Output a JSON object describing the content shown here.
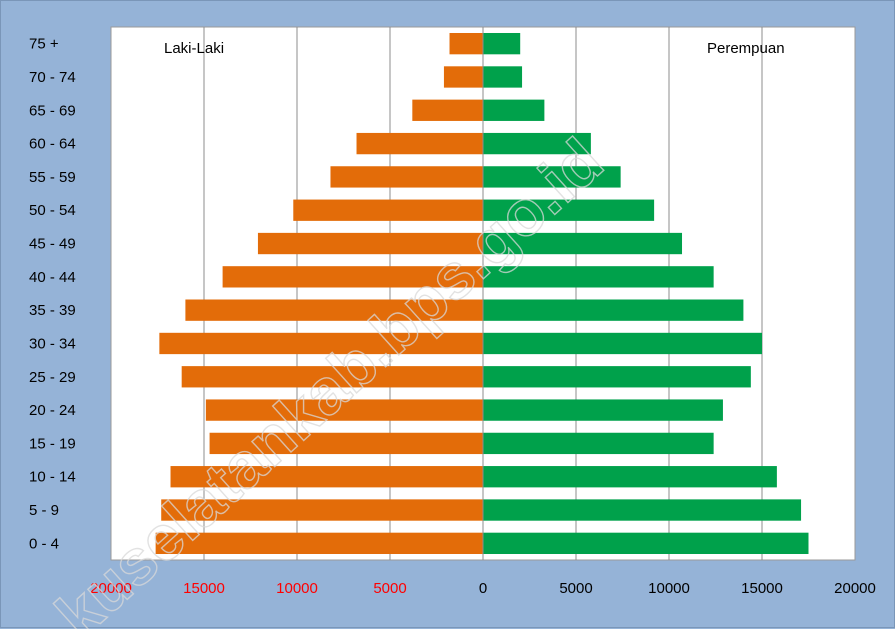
{
  "chart_data": {
    "type": "bar",
    "orientation": "horizontal",
    "categories": [
      "0 - 4",
      "5 - 9",
      "10 - 14",
      "15 - 19",
      "20 - 24",
      "25 - 29",
      "30 - 34",
      "35 - 39",
      "40 - 44",
      "45 - 49",
      "50 - 54",
      "55 - 59",
      "60 - 64",
      "65 - 69",
      "70 - 74",
      "75 +"
    ],
    "series": [
      {
        "name": "Laki-Laki",
        "side": "left",
        "color": "#e36c09",
        "values": [
          17600,
          17300,
          16800,
          14700,
          14900,
          16200,
          17400,
          16000,
          14000,
          12100,
          10200,
          8200,
          6800,
          3800,
          2100,
          1800
        ]
      },
      {
        "name": "Perempuan",
        "side": "right",
        "color": "#00a14b",
        "values": [
          17500,
          17100,
          15800,
          12400,
          12900,
          14400,
          15000,
          14000,
          12400,
          10700,
          9200,
          7400,
          5800,
          3300,
          2100,
          2000
        ]
      }
    ],
    "xlim": [
      -20000,
      20000
    ],
    "xticks": [
      {
        "value": -20000,
        "label": "20000"
      },
      {
        "value": -15000,
        "label": "15000"
      },
      {
        "value": -10000,
        "label": "10000"
      },
      {
        "value": -5000,
        "label": "5000"
      },
      {
        "value": 0,
        "label": "0"
      },
      {
        "value": 5000,
        "label": "5000"
      },
      {
        "value": 10000,
        "label": "10000"
      },
      {
        "value": 15000,
        "label": "15000"
      },
      {
        "value": 20000,
        "label": "20000"
      }
    ],
    "left_tick_color": "#ff0000",
    "right_tick_color": "#000000",
    "grid": true,
    "legend_placement": "inside-top"
  },
  "watermark_text": "kuselatankab.bps.go.id"
}
